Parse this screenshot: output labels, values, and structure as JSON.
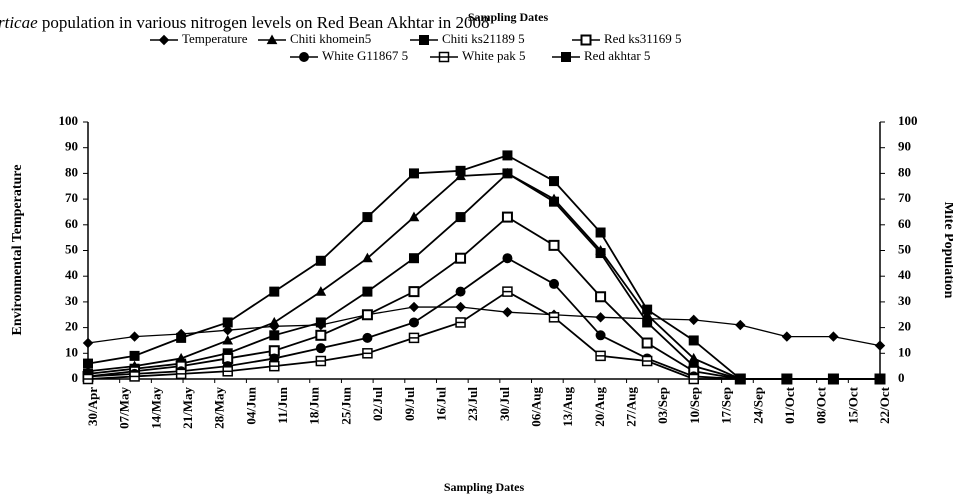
{
  "chart_data": {
    "type": "line",
    "top_label": "Sampling Dates",
    "title": [
      "rticae",
      " population in various nitrogen levels on Red Bean Akhtar in 2008"
    ],
    "y_label": "Environmental Temperature",
    "y2_label": "Mite Population",
    "x_label": "Sampling Dates",
    "xlim": [
      0,
      25
    ],
    "xticks": [
      {
        "value": 0,
        "label": "30/Apr"
      },
      {
        "value": 1,
        "label": "07/May"
      },
      {
        "value": 2,
        "label": "14/May"
      },
      {
        "value": 3,
        "label": "21/May"
      },
      {
        "value": 4,
        "label": "28/May"
      },
      {
        "value": 5,
        "label": "04/Jun"
      },
      {
        "value": 6,
        "label": "11/Jun"
      },
      {
        "value": 7,
        "label": "18/Jun"
      },
      {
        "value": 8,
        "label": "25/Jun"
      },
      {
        "value": 9,
        "label": "02/Jul"
      },
      {
        "value": 10,
        "label": "09/Jul"
      },
      {
        "value": 11,
        "label": "16/Jul"
      },
      {
        "value": 12,
        "label": "23/Jul"
      },
      {
        "value": 13,
        "label": "30/Jul"
      },
      {
        "value": 14,
        "label": "06/Aug"
      },
      {
        "value": 15,
        "label": "13/Aug"
      },
      {
        "value": 16,
        "label": "20/Aug"
      },
      {
        "value": 17,
        "label": "27/Aug"
      },
      {
        "value": 18,
        "label": "03/Sep"
      },
      {
        "value": 19,
        "label": "10/Sep"
      },
      {
        "value": 20,
        "label": "17/Sep"
      },
      {
        "value": 21,
        "label": "24/Sep"
      },
      {
        "value": 22,
        "label": "01/Oct"
      },
      {
        "value": 23,
        "label": "08/Oct"
      },
      {
        "value": 24,
        "label": "15/Oct"
      },
      {
        "value": 25,
        "label": "22/Oct"
      }
    ],
    "x": [
      0,
      1.47,
      2.94,
      4.41,
      5.88,
      7.35,
      8.82,
      10.29,
      11.76,
      13.24,
      14.71,
      16.18,
      17.65,
      19.12,
      20.59,
      22.06,
      23.53,
      25
    ],
    "ylim": [
      0,
      100
    ],
    "yticks": [
      0,
      10,
      20,
      30,
      40,
      50,
      60,
      70,
      80,
      90,
      100
    ],
    "y2lim": [
      0,
      100
    ],
    "y2ticks": [
      0,
      10,
      20,
      30,
      40,
      50,
      60,
      70,
      80,
      90,
      100
    ],
    "series": [
      {
        "name": "Temperature",
        "color": "#000000",
        "marker": "diamond",
        "values": [
          14,
          16.5,
          17.5,
          19,
          20.5,
          21,
          25,
          28,
          28,
          26,
          25,
          24,
          23.5,
          23,
          21,
          16.5,
          16.5,
          13
        ]
      },
      {
        "name": "Chiti khomein5",
        "color": "#000000",
        "marker": "triangle",
        "axis": "y2",
        "values": [
          3,
          5,
          8,
          15,
          22,
          34,
          47,
          63,
          79,
          80,
          70,
          50,
          25,
          8,
          0,
          0,
          0,
          0
        ]
      },
      {
        "name": "Chiti ks21189 5",
        "color": "#000000",
        "marker": "square",
        "axis": "y2",
        "values": [
          2,
          4,
          6,
          10,
          17,
          22,
          34,
          47,
          63,
          80,
          69,
          49,
          22,
          5,
          0,
          0,
          0,
          0
        ]
      },
      {
        "name": "Red ks31169 5",
        "color": "#000000",
        "marker": "square-open",
        "axis": "y2",
        "values": [
          1,
          3,
          5,
          8,
          11,
          17,
          25,
          34,
          47,
          63,
          52,
          32,
          14,
          3,
          0,
          0,
          0,
          0
        ]
      },
      {
        "name": "White G11867 5",
        "color": "#000000",
        "marker": "circle",
        "axis": "y2",
        "values": [
          1,
          2,
          3,
          5,
          8,
          12,
          16,
          22,
          34,
          47,
          37,
          17,
          8,
          1,
          0,
          0,
          0,
          0
        ]
      },
      {
        "name": "White pak 5",
        "color": "#000000",
        "marker": "square-plus",
        "axis": "y2",
        "values": [
          0,
          1,
          2,
          3,
          5,
          7,
          10,
          16,
          22,
          34,
          24,
          9,
          7,
          0,
          0,
          0,
          0,
          0
        ]
      },
      {
        "name": "Red akhtar 5",
        "color": "#000000",
        "marker": "square",
        "axis": "y2",
        "values": [
          6,
          9,
          16,
          22,
          34,
          46,
          63,
          80,
          81,
          87,
          77,
          57,
          27,
          15,
          0,
          0,
          0,
          0
        ]
      }
    ]
  }
}
